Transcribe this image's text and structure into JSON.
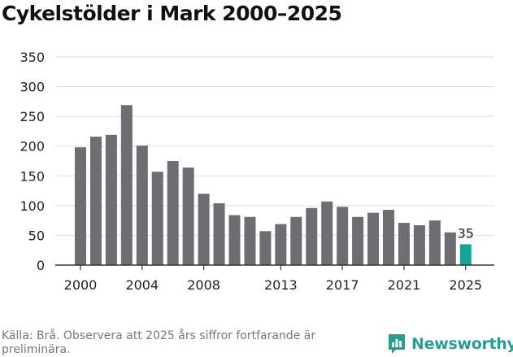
{
  "chart_data": {
    "type": "bar",
    "title": "Cykelstölder i Mark 2000–2025",
    "categories": [
      "2000",
      "2001",
      "2002",
      "2003",
      "2004",
      "2005",
      "2006",
      "2007",
      "2008",
      "2009",
      "2010",
      "2011",
      "2012",
      "2013",
      "2014",
      "2015",
      "2016",
      "2017",
      "2018",
      "2019",
      "2020",
      "2021",
      "2022",
      "2023",
      "2024",
      "2025"
    ],
    "values": [
      198,
      216,
      219,
      269,
      201,
      157,
      175,
      164,
      120,
      104,
      84,
      81,
      57,
      69,
      81,
      96,
      107,
      98,
      81,
      88,
      93,
      71,
      67,
      75,
      55,
      35
    ],
    "x_tick_labels": [
      "2000",
      "2004",
      "2008",
      "2013",
      "2017",
      "2021",
      "2025"
    ],
    "y_ticks": [
      0,
      50,
      100,
      150,
      200,
      250,
      300,
      350
    ],
    "ylim": [
      0,
      350
    ],
    "highlight": {
      "category": "2025",
      "label": "35"
    },
    "xlabel": "",
    "ylabel": "",
    "grid": true,
    "colors": {
      "bar": "#6e6d72",
      "highlight": "#17a398",
      "grid": "#dddddd",
      "axis": "#333333"
    }
  },
  "source_text": "Källa: Brå. Observera att 2025 års siffror fortfarande är preliminära.",
  "logo": {
    "name": "Newsworthy",
    "icon": "chart-logo-icon",
    "color": "#2a9d8f"
  }
}
